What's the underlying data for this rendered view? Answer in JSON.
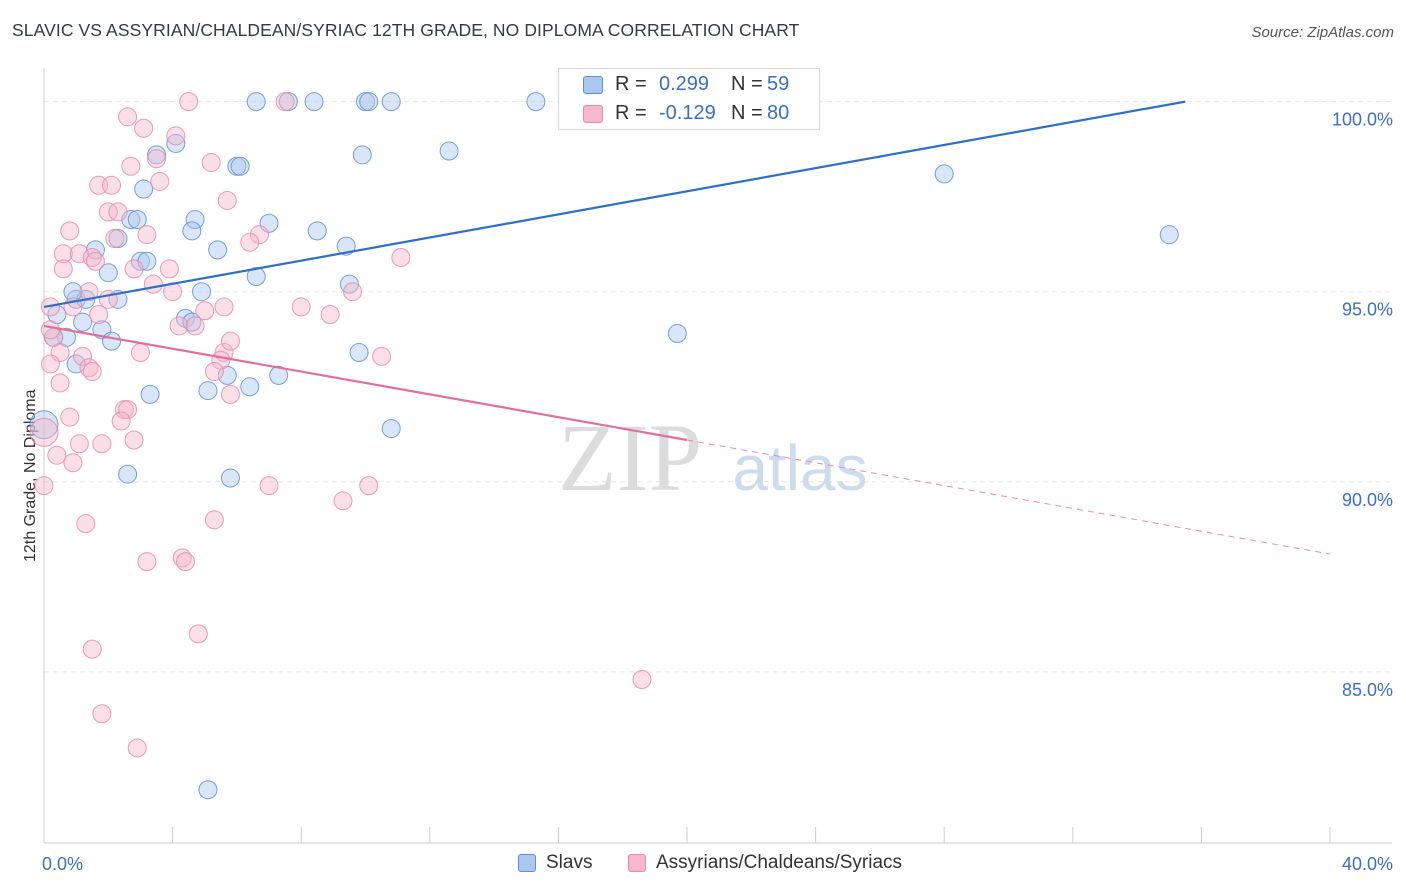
{
  "title": "SLAVIC VS ASSYRIAN/CHALDEAN/SYRIAC 12TH GRADE, NO DIPLOMA CORRELATION CHART",
  "source": "Source: ZipAtlas.com",
  "watermark": {
    "zip": "ZIP",
    "atlas": "atlas"
  },
  "colors": {
    "blue_fill": "#aac8ef",
    "blue_stroke": "#5e8fd6",
    "blue_line": "#2f6fc9",
    "pink_fill": "#f5b8cc",
    "pink_stroke": "#e68aa8",
    "pink_line": "#e0709a",
    "axis_text": "#3b6fc4",
    "grid": "#e6e6e6"
  },
  "stats": {
    "rows": [
      {
        "r_label": "R =",
        "r_value": "0.299",
        "n_label": "N =",
        "n_value": "59"
      },
      {
        "r_label": "R =",
        "r_value": "-0.129",
        "n_label": "N =",
        "n_value": "80"
      }
    ]
  },
  "legend": {
    "items": [
      "Slavs",
      "Assyrians/Chaldeans/Syriacs"
    ]
  },
  "chart_data": {
    "type": "scatter",
    "title": "SLAVIC VS ASSYRIAN/CHALDEAN/SYRIAC 12TH GRADE, NO DIPLOMA CORRELATION CHART",
    "xlabel": "",
    "ylabel": "12th Grade, No Diploma",
    "xlim": [
      0,
      40
    ],
    "ylim": [
      80.5,
      100.7
    ],
    "x_tick_labels": [
      "0.0%",
      "40.0%"
    ],
    "y_ticks": [
      85,
      90,
      95,
      100
    ],
    "y_tick_labels": [
      "85.0%",
      "90.0%",
      "95.0%",
      "100.0%"
    ],
    "grid": true,
    "legend_position": "bottom",
    "series": [
      {
        "name": "Slavs",
        "trend": {
          "x0": 0,
          "y0": 94.6,
          "x1": 35.5,
          "y1": 100.0,
          "dashed_to": null
        },
        "points": [
          [
            6.6,
            100
          ],
          [
            7.6,
            100
          ],
          [
            8.4,
            100
          ],
          [
            10.0,
            100
          ],
          [
            10.1,
            100
          ],
          [
            10.8,
            100
          ],
          [
            15.3,
            100
          ],
          [
            17.0,
            100
          ],
          [
            4.1,
            98.9
          ],
          [
            3.5,
            98.6
          ],
          [
            6.0,
            98.3
          ],
          [
            6.1,
            98.3
          ],
          [
            9.9,
            98.6
          ],
          [
            12.6,
            98.7
          ],
          [
            3.1,
            97.7
          ],
          [
            1.6,
            96.1
          ],
          [
            2.3,
            96.4
          ],
          [
            2.7,
            96.9
          ],
          [
            4.7,
            96.9
          ],
          [
            4.6,
            96.6
          ],
          [
            5.4,
            96.1
          ],
          [
            7.0,
            96.8
          ],
          [
            8.5,
            96.6
          ],
          [
            9.4,
            96.2
          ],
          [
            3.0,
            95.8
          ],
          [
            3.2,
            95.8
          ],
          [
            2.0,
            95.5
          ],
          [
            6.6,
            95.4
          ],
          [
            9.5,
            95.2
          ],
          [
            1.0,
            94.8
          ],
          [
            1.3,
            94.8
          ],
          [
            0.9,
            95.0
          ],
          [
            2.3,
            94.8
          ],
          [
            4.9,
            95.0
          ],
          [
            4.4,
            94.3
          ],
          [
            4.6,
            94.2
          ],
          [
            0.4,
            94.4
          ],
          [
            1.2,
            94.2
          ],
          [
            1.8,
            94.0
          ],
          [
            2.1,
            93.7
          ],
          [
            0.7,
            93.8
          ],
          [
            0.3,
            93.8
          ],
          [
            1.0,
            93.1
          ],
          [
            9.8,
            93.4
          ],
          [
            5.7,
            92.8
          ],
          [
            7.3,
            92.8
          ],
          [
            5.1,
            92.4
          ],
          [
            6.4,
            92.5
          ],
          [
            3.3,
            92.3
          ],
          [
            0.0,
            91.5
          ],
          [
            10.8,
            91.4
          ],
          [
            2.6,
            90.2
          ],
          [
            5.8,
            90.1
          ],
          [
            28.0,
            98.1
          ],
          [
            35.0,
            96.5
          ],
          [
            19.7,
            93.9
          ],
          [
            5.1,
            81.9
          ],
          [
            17.6,
            100
          ],
          [
            2.9,
            96.9
          ]
        ]
      },
      {
        "name": "Assyrians/Chaldeans/Syriacs",
        "trend": {
          "x0": 0,
          "y0": 94.1,
          "x1": 20,
          "y1": 91.1,
          "dashed_to": {
            "x": 40,
            "y": 88.1
          }
        },
        "points": [
          [
            4.5,
            100
          ],
          [
            2.6,
            99.6
          ],
          [
            3.1,
            99.3
          ],
          [
            4.1,
            99.1
          ],
          [
            2.7,
            98.3
          ],
          [
            3.5,
            98.5
          ],
          [
            5.2,
            98.4
          ],
          [
            3.6,
            97.9
          ],
          [
            1.7,
            97.8
          ],
          [
            2.1,
            97.8
          ],
          [
            5.7,
            97.4
          ],
          [
            2.0,
            97.1
          ],
          [
            2.3,
            97.1
          ],
          [
            0.8,
            96.6
          ],
          [
            2.2,
            96.4
          ],
          [
            3.2,
            96.5
          ],
          [
            6.7,
            96.5
          ],
          [
            6.4,
            96.3
          ],
          [
            0.6,
            96.0
          ],
          [
            1.1,
            96.0
          ],
          [
            1.5,
            95.9
          ],
          [
            1.6,
            95.8
          ],
          [
            0.6,
            95.6
          ],
          [
            2.8,
            95.6
          ],
          [
            3.9,
            95.6
          ],
          [
            11.1,
            95.9
          ],
          [
            3.4,
            95.2
          ],
          [
            9.6,
            95.0
          ],
          [
            0.2,
            94.6
          ],
          [
            1.4,
            95.0
          ],
          [
            0.9,
            94.6
          ],
          [
            5.6,
            94.6
          ],
          [
            5.0,
            94.5
          ],
          [
            8.9,
            94.4
          ],
          [
            1.7,
            94.4
          ],
          [
            4.2,
            94.1
          ],
          [
            0.3,
            93.8
          ],
          [
            0.5,
            93.4
          ],
          [
            1.2,
            93.3
          ],
          [
            3.0,
            93.4
          ],
          [
            5.6,
            93.4
          ],
          [
            5.5,
            93.2
          ],
          [
            10.5,
            93.3
          ],
          [
            5.8,
            93.7
          ],
          [
            0.2,
            93.1
          ],
          [
            1.4,
            93.0
          ],
          [
            1.5,
            92.9
          ],
          [
            5.3,
            92.9
          ],
          [
            4.7,
            94.1
          ],
          [
            0.5,
            92.6
          ],
          [
            5.8,
            92.3
          ],
          [
            2.5,
            91.9
          ],
          [
            2.6,
            91.9
          ],
          [
            0.8,
            91.7
          ],
          [
            2.4,
            91.6
          ],
          [
            0.0,
            91.3
          ],
          [
            1.1,
            91.0
          ],
          [
            1.8,
            91.0
          ],
          [
            2.8,
            91.1
          ],
          [
            0.4,
            90.7
          ],
          [
            0.9,
            90.5
          ],
          [
            7.0,
            89.9
          ],
          [
            10.1,
            89.9
          ],
          [
            0.0,
            89.9
          ],
          [
            9.3,
            89.5
          ],
          [
            5.3,
            89.0
          ],
          [
            1.3,
            88.9
          ],
          [
            4.3,
            88.0
          ],
          [
            4.4,
            87.9
          ],
          [
            3.2,
            87.9
          ],
          [
            4.8,
            86.0
          ],
          [
            1.5,
            85.6
          ],
          [
            18.6,
            84.8
          ],
          [
            1.8,
            83.9
          ],
          [
            2.9,
            83.0
          ],
          [
            7.5,
            100
          ],
          [
            0.2,
            94.0
          ],
          [
            2.0,
            94.8
          ],
          [
            4.0,
            95.0
          ],
          [
            8.0,
            94.6
          ]
        ]
      }
    ]
  }
}
